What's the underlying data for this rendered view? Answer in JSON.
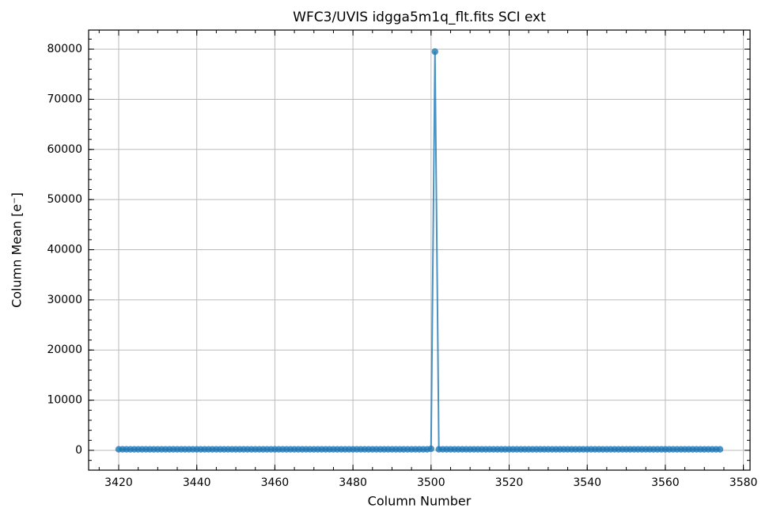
{
  "chart_data": {
    "type": "line",
    "title": "WFC3/UVIS idgga5m1q_flt.fits SCI ext",
    "x_label": "Column Number",
    "y_label": "Column Mean [e⁻]",
    "x": [
      3420,
      3421,
      3422,
      3423,
      3424,
      3425,
      3426,
      3427,
      3428,
      3429,
      3430,
      3431,
      3432,
      3433,
      3434,
      3435,
      3436,
      3437,
      3438,
      3439,
      3440,
      3441,
      3442,
      3443,
      3444,
      3445,
      3446,
      3447,
      3448,
      3449,
      3450,
      3451,
      3452,
      3453,
      3454,
      3455,
      3456,
      3457,
      3458,
      3459,
      3460,
      3461,
      3462,
      3463,
      3464,
      3465,
      3466,
      3467,
      3468,
      3469,
      3470,
      3471,
      3472,
      3473,
      3474,
      3475,
      3476,
      3477,
      3478,
      3479,
      3480,
      3481,
      3482,
      3483,
      3484,
      3485,
      3486,
      3487,
      3488,
      3489,
      3490,
      3491,
      3492,
      3493,
      3494,
      3495,
      3496,
      3497,
      3498,
      3499,
      3500,
      3501,
      3502,
      3503,
      3504,
      3505,
      3506,
      3507,
      3508,
      3509,
      3510,
      3511,
      3512,
      3513,
      3514,
      3515,
      3516,
      3517,
      3518,
      3519,
      3520,
      3521,
      3522,
      3523,
      3524,
      3525,
      3526,
      3527,
      3528,
      3529,
      3530,
      3531,
      3532,
      3533,
      3534,
      3535,
      3536,
      3537,
      3538,
      3539,
      3540,
      3541,
      3542,
      3543,
      3544,
      3545,
      3546,
      3547,
      3548,
      3549,
      3550,
      3551,
      3552,
      3553,
      3554,
      3555,
      3556,
      3557,
      3558,
      3559,
      3560,
      3561,
      3562,
      3563,
      3564,
      3565,
      3566,
      3567,
      3568,
      3569,
      3570,
      3571,
      3572,
      3573,
      3574
    ],
    "series": [
      {
        "name": "column mean",
        "color": "#1f77b4",
        "values": [
          200,
          200,
          200,
          200,
          200,
          200,
          200,
          200,
          200,
          200,
          200,
          200,
          200,
          200,
          200,
          200,
          200,
          200,
          200,
          200,
          200,
          200,
          200,
          200,
          200,
          200,
          200,
          200,
          200,
          200,
          200,
          200,
          200,
          200,
          200,
          200,
          200,
          200,
          200,
          200,
          200,
          200,
          200,
          200,
          200,
          200,
          200,
          200,
          200,
          200,
          200,
          200,
          200,
          200,
          200,
          200,
          200,
          200,
          200,
          200,
          200,
          200,
          200,
          200,
          200,
          200,
          200,
          200,
          200,
          200,
          200,
          200,
          200,
          200,
          200,
          200,
          200,
          200,
          200,
          200,
          300,
          79500,
          200,
          200,
          200,
          200,
          200,
          200,
          200,
          200,
          200,
          200,
          200,
          200,
          200,
          200,
          200,
          200,
          200,
          200,
          200,
          200,
          200,
          200,
          200,
          200,
          200,
          200,
          200,
          200,
          200,
          200,
          200,
          200,
          200,
          200,
          200,
          200,
          200,
          200,
          200,
          200,
          200,
          200,
          200,
          200,
          200,
          200,
          200,
          200,
          200,
          200,
          200,
          200,
          200,
          200,
          200,
          200,
          200,
          200,
          200,
          200,
          200,
          200,
          200,
          200,
          200,
          200,
          200,
          200,
          200,
          200,
          200,
          200,
          200
        ]
      }
    ],
    "xlim": [
      3412.3,
      3581.7
    ],
    "ylim": [
      -3950,
      83800
    ],
    "xticks": [
      3420,
      3440,
      3460,
      3480,
      3500,
      3520,
      3540,
      3560,
      3580
    ],
    "yticks": [
      0,
      10000,
      20000,
      30000,
      40000,
      50000,
      60000,
      70000,
      80000
    ],
    "grid": true
  }
}
